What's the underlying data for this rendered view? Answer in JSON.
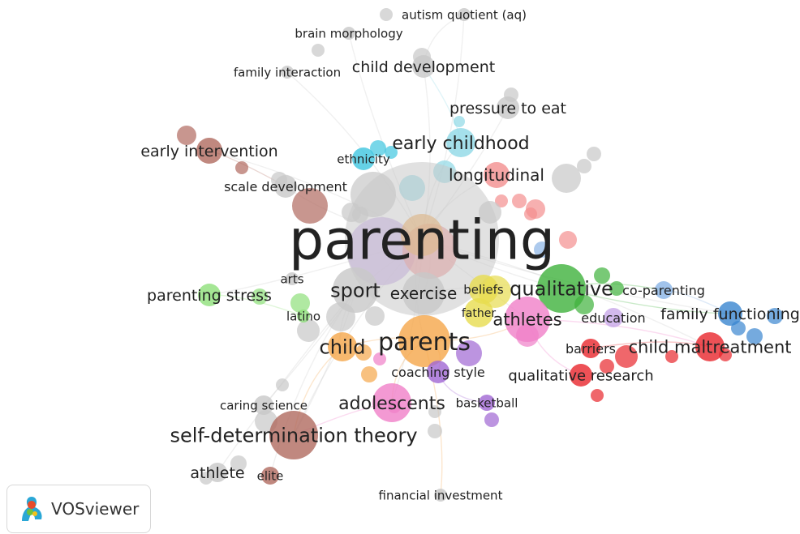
{
  "app": {
    "name": "VOSviewer"
  },
  "clusters": {
    "grey": "#c8c8c8",
    "red": "#e8262c",
    "green": "#3fb23c",
    "blue": "#3a86d0",
    "lightblue": "#8ab4e6",
    "orange": "#f5a64a",
    "purple": "#a066d3",
    "brown": "#b06a5f",
    "pink": "#f07fc8",
    "lightgreen": "#8fe07a",
    "cyan": "#3fc6e0",
    "salmon": "#f38e8e",
    "yellow": "#e7dc4f",
    "lavender": "#c8a8e8",
    "teal": "#8fd8e6"
  },
  "keywords": [
    {
      "id": "parenting",
      "label": "parenting",
      "cluster": "grey",
      "weight": 34
    },
    {
      "id": "sport",
      "label": "sport",
      "cluster": "grey",
      "weight": 10
    },
    {
      "id": "exercise",
      "label": "exercise",
      "cluster": "grey",
      "weight": 9
    },
    {
      "id": "beliefs",
      "label": "beliefs",
      "cluster": "yellow",
      "weight": 6
    },
    {
      "id": "father",
      "label": "father",
      "cluster": "yellow",
      "weight": 6
    },
    {
      "id": "qualitative",
      "label": "qualitative",
      "cluster": "green",
      "weight": 10
    },
    {
      "id": "co-parenting",
      "label": "co-parenting",
      "cluster": "lightblue",
      "weight": 6
    },
    {
      "id": "family-functioning",
      "label": "family functioning",
      "cluster": "blue",
      "weight": 8
    },
    {
      "id": "athletes",
      "label": "athletes",
      "cluster": "pink",
      "weight": 10
    },
    {
      "id": "education",
      "label": "education",
      "cluster": "lavender",
      "weight": 6
    },
    {
      "id": "child-maltreatment",
      "label": "child maltreatment",
      "cluster": "red",
      "weight": 9
    },
    {
      "id": "barriers",
      "label": "barriers",
      "cluster": "red",
      "weight": 6
    },
    {
      "id": "qualitative-research",
      "label": "qualitative research",
      "cluster": "red",
      "weight": 8
    },
    {
      "id": "parents",
      "label": "parents",
      "cluster": "orange",
      "weight": 12
    },
    {
      "id": "child",
      "label": "child",
      "cluster": "orange",
      "weight": 9
    },
    {
      "id": "coaching-style",
      "label": "coaching style",
      "cluster": "purple",
      "weight": 6
    },
    {
      "id": "basketball",
      "label": "basketball",
      "cluster": "purple",
      "weight": 6
    },
    {
      "id": "adolescents",
      "label": "adolescents",
      "cluster": "pink",
      "weight": 10
    },
    {
      "id": "self-determination-theory",
      "label": "self-determination theory",
      "cluster": "brown",
      "weight": 10
    },
    {
      "id": "caring-science",
      "label": "caring science",
      "cluster": "grey",
      "weight": 6
    },
    {
      "id": "athlete",
      "label": "athlete",
      "cluster": "grey",
      "weight": 7
    },
    {
      "id": "elite",
      "label": "elite",
      "cluster": "brown",
      "weight": 5
    },
    {
      "id": "financial-investment",
      "label": "financial investment",
      "cluster": "grey",
      "weight": 5
    },
    {
      "id": "parenting-stress",
      "label": "parenting stress",
      "cluster": "lightgreen",
      "weight": 8
    },
    {
      "id": "arts",
      "label": "arts",
      "cluster": "grey",
      "weight": 5
    },
    {
      "id": "latino",
      "label": "latino",
      "cluster": "lightgreen",
      "weight": 5
    },
    {
      "id": "early-intervention",
      "label": "early intervention",
      "cluster": "brown",
      "weight": 8
    },
    {
      "id": "scale-development",
      "label": "scale development",
      "cluster": "grey",
      "weight": 7
    },
    {
      "id": "ethnicity",
      "label": "ethnicity",
      "cluster": "cyan",
      "weight": 6
    },
    {
      "id": "early-childhood",
      "label": "early childhood",
      "cluster": "teal",
      "weight": 9
    },
    {
      "id": "longitudinal",
      "label": "longitudinal",
      "cluster": "salmon",
      "weight": 8
    },
    {
      "id": "pressure-to-eat",
      "label": "pressure to eat",
      "cluster": "grey",
      "weight": 8
    },
    {
      "id": "child-development",
      "label": "child development",
      "cluster": "grey",
      "weight": 8
    },
    {
      "id": "family-interaction",
      "label": "family interaction",
      "cluster": "grey",
      "weight": 6
    },
    {
      "id": "brain-morphology",
      "label": "brain morphology",
      "cluster": "grey",
      "weight": 6
    },
    {
      "id": "autism-quotient",
      "label": "autism quotient (aq)",
      "cluster": "grey",
      "weight": 6
    }
  ]
}
